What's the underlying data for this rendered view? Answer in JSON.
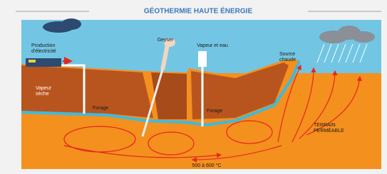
{
  "title": "GÉOTHERMIE HAUTE ÉNERGIE",
  "labels": [
    {
      "lines": [
        "Production",
        "d'électricité"
      ]
    },
    {
      "lines": [
        "Geyser"
      ]
    },
    {
      "lines": [
        "Vapeur et eau"
      ]
    },
    {
      "lines": [
        "Source",
        "chaude"
      ]
    },
    {
      "lines": [
        "Vapeur",
        "sèche"
      ]
    },
    {
      "lines": [
        "Forage"
      ]
    },
    {
      "lines": [
        "Forage"
      ]
    },
    {
      "lines": [
        "TERRAIN",
        "PERMÉABLE"
      ]
    },
    {
      "lines": [
        "500 à 600 °C"
      ]
    }
  ]
}
